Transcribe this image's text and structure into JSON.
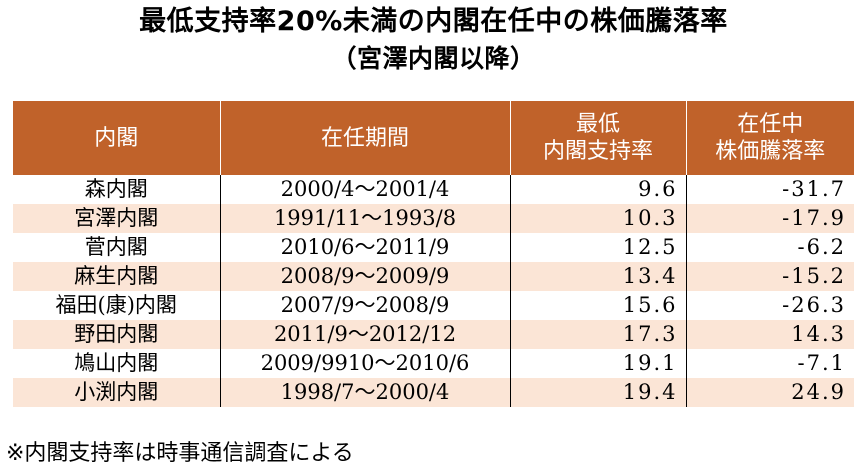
{
  "title": "最低支持率20%未満の内閣在任中の株価騰落率",
  "subtitle": "（宮澤内閣以降）",
  "headers": {
    "cabinet": "内閣",
    "term": "在任期間",
    "min_rate_line1": "最低",
    "min_rate_line2": "内閣支持率",
    "change_line1": "在任中",
    "change_line2": "株価騰落率"
  },
  "rows": [
    {
      "cabinet": "森内閣",
      "term": "2000/4～2001/4",
      "min_rate": "9.6",
      "change": "-31.7"
    },
    {
      "cabinet": "宮澤内閣",
      "term": "1991/11～1993/8",
      "min_rate": "10.3",
      "change": "-17.9"
    },
    {
      "cabinet": "菅内閣",
      "term": "2010/6～2011/9",
      "min_rate": "12.5",
      "change": "-6.2"
    },
    {
      "cabinet": "麻生内閣",
      "term": "2008/9～2009/9",
      "min_rate": "13.4",
      "change": "-15.2"
    },
    {
      "cabinet": "福田(康)内閣",
      "term": "2007/9～2008/9",
      "min_rate": "15.6",
      "change": "-26.3"
    },
    {
      "cabinet": "野田内閣",
      "term": "2011/9～2012/12",
      "min_rate": "17.3",
      "change": "14.3"
    },
    {
      "cabinet": "鳩山内閣",
      "term": "2009/9910～2010/6",
      "min_rate": "19.1",
      "change": "-7.1"
    },
    {
      "cabinet": "小渕内閣",
      "term": "1998/7～2000/4",
      "min_rate": "19.4",
      "change": "24.9"
    }
  ],
  "footnote": "※内閣支持率は時事通信調査による",
  "colors": {
    "header_background": "#c0622a",
    "header_text": "#ffffff",
    "stripe_row": "#fbe5d6",
    "plain_row": "#ffffff"
  }
}
